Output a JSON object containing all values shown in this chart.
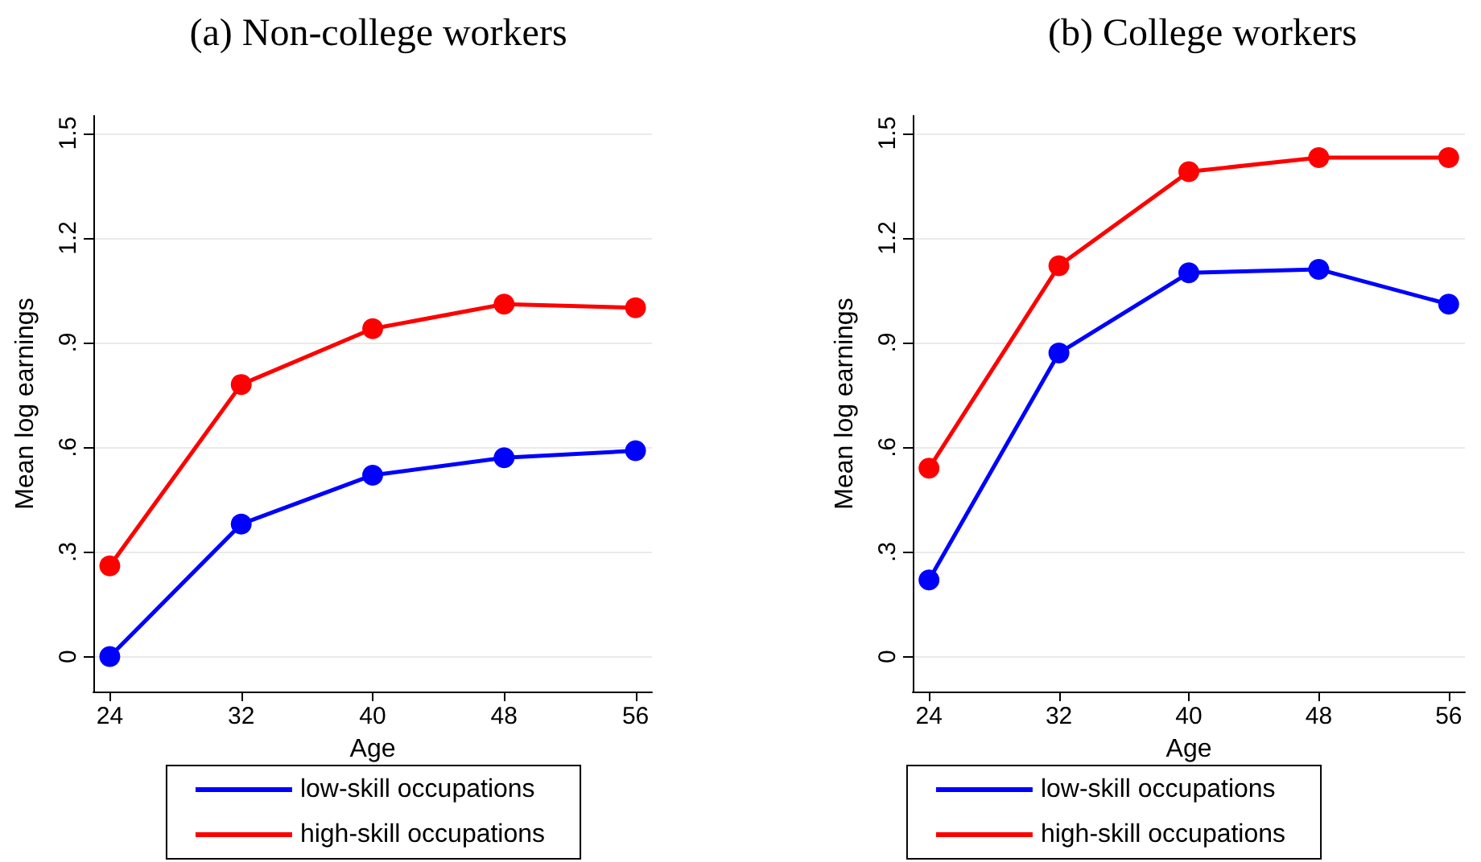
{
  "chart_data": [
    {
      "type": "line",
      "title": "(a) Non-college workers",
      "xlabel": "Age",
      "ylabel": "Mean log earnings",
      "x": [
        24,
        32,
        40,
        48,
        56
      ],
      "series": [
        {
          "name": "low-skill occupations",
          "color": "#0000ff",
          "values": [
            0,
            0.38,
            0.52,
            0.57,
            0.59
          ]
        },
        {
          "name": "high-skill occupations",
          "color": "#ff0000",
          "values": [
            0.26,
            0.78,
            0.94,
            1.01,
            1.0
          ]
        }
      ],
      "xlim": [
        23,
        57
      ],
      "xticks": [
        24,
        32,
        40,
        48,
        56
      ],
      "ylim": [
        -0.1,
        1.55
      ],
      "yticks": [
        0,
        {
          "value": 0.3,
          "label": ".3"
        },
        {
          "value": 0.6,
          "label": ".6"
        },
        {
          "value": 0.9,
          "label": ".9"
        },
        1.2,
        1.5
      ],
      "grid": "y",
      "legend": "bottom",
      "marker": "circle",
      "line_style": "solid"
    },
    {
      "type": "line",
      "title": "(b) College workers",
      "xlabel": "Age",
      "ylabel": "Mean log earnings",
      "x": [
        24,
        32,
        40,
        48,
        56
      ],
      "series": [
        {
          "name": "low-skill occupations",
          "color": "#0000ff",
          "values": [
            0.22,
            0.87,
            1.1,
            1.11,
            1.01
          ]
        },
        {
          "name": "high-skill occupations",
          "color": "#ff0000",
          "values": [
            0.54,
            1.12,
            1.39,
            1.43,
            1.43
          ]
        }
      ],
      "xlim": [
        23,
        57
      ],
      "xticks": [
        24,
        32,
        40,
        48,
        56
      ],
      "ylim": [
        -0.1,
        1.55
      ],
      "yticks": [
        0,
        {
          "value": 0.3,
          "label": ".3"
        },
        {
          "value": 0.6,
          "label": ".6"
        },
        {
          "value": 0.9,
          "label": ".9"
        },
        1.2,
        1.5
      ],
      "grid": "y",
      "legend": "bottom",
      "marker": "circle",
      "line_style": "solid"
    }
  ]
}
